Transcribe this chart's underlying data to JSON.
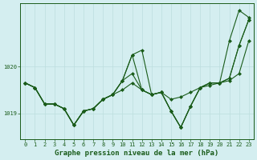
{
  "title": "Graphe pression niveau de la mer (hPa)",
  "x_ticks": [
    0,
    1,
    2,
    3,
    4,
    5,
    6,
    7,
    8,
    9,
    10,
    11,
    12,
    13,
    14,
    15,
    16,
    17,
    18,
    19,
    20,
    21,
    22,
    23
  ],
  "ylim": [
    1018.45,
    1021.35
  ],
  "yticks": [
    1019,
    1020
  ],
  "background_color": "#d4eef0",
  "grid_color": "#bcdede",
  "line_color": "#1a5c1a",
  "series": [
    [
      1019.65,
      1019.55,
      1019.2,
      1019.2,
      1019.1,
      1018.75,
      1019.05,
      1019.1,
      1019.3,
      1019.4,
      1019.5,
      1019.65,
      1019.5,
      1019.4,
      1019.45,
      1019.3,
      1019.35,
      1019.45,
      1019.55,
      1019.6,
      1019.65,
      1019.7,
      1019.85,
      1020.55
    ],
    [
      1019.65,
      1019.55,
      1019.2,
      1019.2,
      1019.1,
      1018.75,
      1019.05,
      1019.1,
      1019.3,
      1019.4,
      1019.7,
      1019.85,
      1019.5,
      1019.4,
      1019.45,
      1019.05,
      1018.7,
      1019.15,
      1019.55,
      1019.65,
      1019.65,
      1019.75,
      1020.45,
      1021.0
    ],
    [
      1019.65,
      1019.55,
      1019.2,
      1019.2,
      1019.1,
      1018.75,
      1019.05,
      1019.1,
      1019.3,
      1019.4,
      1019.7,
      1020.25,
      1019.5,
      1019.4,
      1019.45,
      1019.05,
      1018.7,
      1019.15,
      1019.55,
      1019.65,
      1019.65,
      1019.75,
      1020.45,
      1021.0
    ],
    [
      1019.65,
      1019.55,
      1019.2,
      1019.2,
      1019.1,
      1018.75,
      1019.05,
      1019.1,
      1019.3,
      1019.4,
      1019.7,
      1020.25,
      1020.35,
      1019.4,
      1019.45,
      1019.05,
      1018.7,
      1019.15,
      1019.55,
      1019.65,
      1019.65,
      1020.55,
      1021.2,
      1021.05
    ]
  ],
  "marker": "D",
  "markersize": 2.0,
  "linewidth": 0.8,
  "title_fontsize": 6.5,
  "tick_fontsize": 5.0
}
